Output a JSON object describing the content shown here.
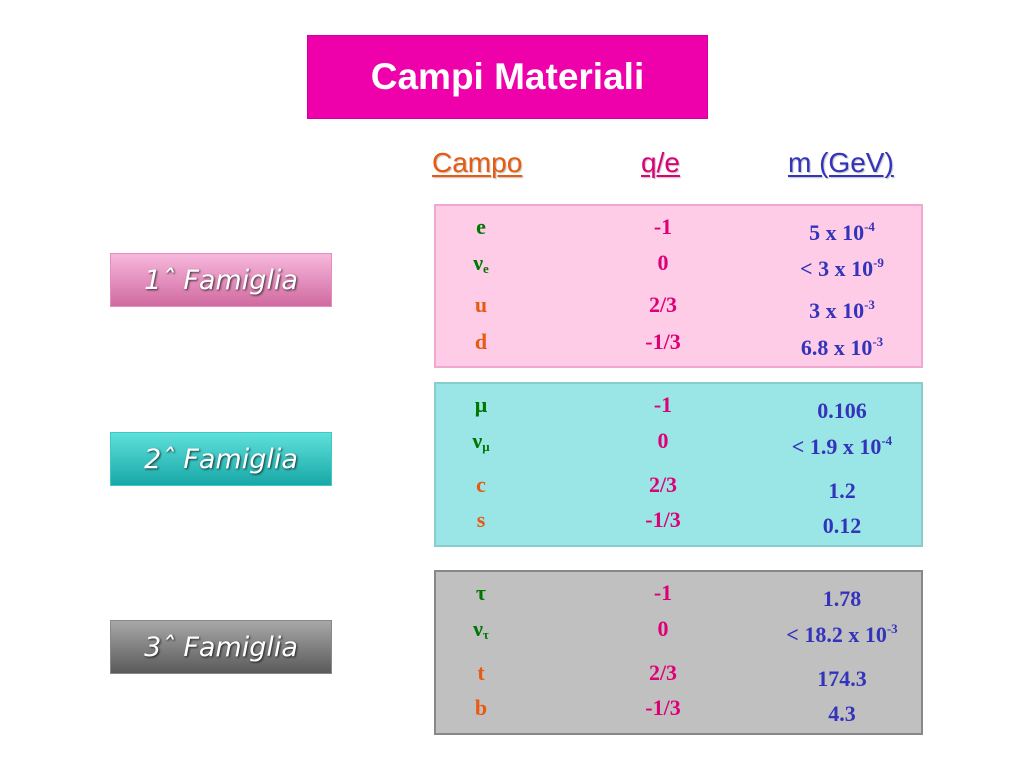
{
  "title": "Campi Materiali",
  "headers": {
    "campo": "Campo",
    "charge": "q/e",
    "mass": "m (GeV)"
  },
  "colors": {
    "title_bg": "#ee00aa",
    "campo": "#e85a10",
    "charge": "#dd0077",
    "mass": "#3333bb",
    "lepton": "#007700",
    "quark": "#e85a10"
  },
  "families": [
    {
      "label": "1ˆ Famiglia",
      "rows": [
        {
          "sym": "e",
          "sub": "",
          "q": "-1",
          "m": "5 x 10",
          "exp": "-4"
        },
        {
          "sym": "ν",
          "sub": "e",
          "q": "0",
          "m": "< 3 x 10",
          "exp": "-9"
        },
        {
          "sym": "u",
          "sub": "",
          "q": "2/3",
          "m": "3 x 10",
          "exp": "-3"
        },
        {
          "sym": "d",
          "sub": "",
          "q": "-1/3",
          "m": "6.8 x 10",
          "exp": "-3"
        }
      ]
    },
    {
      "label": "2ˆ Famiglia",
      "rows": [
        {
          "sym": "μ",
          "sub": "",
          "q": "-1",
          "m": "0.106",
          "exp": ""
        },
        {
          "sym": "ν",
          "sub": "μ",
          "q": "0",
          "m": "< 1.9 x 10",
          "exp": "-4"
        },
        {
          "sym": "c",
          "sub": "",
          "q": "2/3",
          "m": "1.2",
          "exp": ""
        },
        {
          "sym": "s",
          "sub": "",
          "q": "-1/3",
          "m": "0.12",
          "exp": ""
        }
      ]
    },
    {
      "label": "3ˆ Famiglia",
      "rows": [
        {
          "sym": "τ",
          "sub": "",
          "q": "-1",
          "m": "1.78",
          "exp": ""
        },
        {
          "sym": "ν",
          "sub": "τ",
          "q": "0",
          "m": "< 18.2 x 10",
          "exp": "-3"
        },
        {
          "sym": "t",
          "sub": "",
          "q": "2/3",
          "m": "174.3",
          "exp": ""
        },
        {
          "sym": "b",
          "sub": "",
          "q": "-1/3",
          "m": "4.3",
          "exp": ""
        }
      ]
    }
  ]
}
